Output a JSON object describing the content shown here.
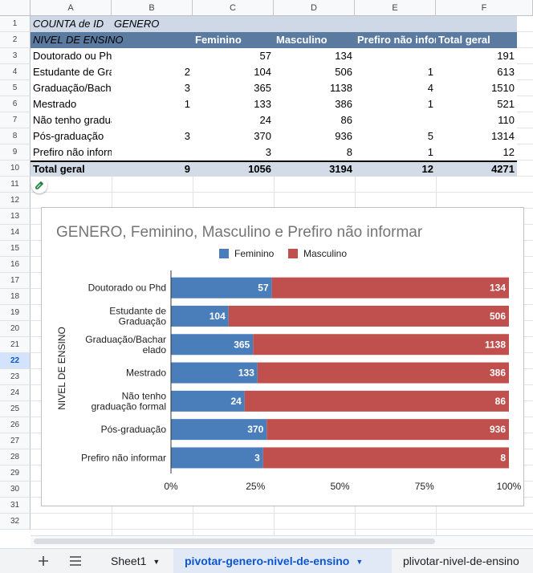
{
  "columns": [
    "A",
    "B",
    "C",
    "D",
    "E",
    "F"
  ],
  "rows": [
    "1",
    "2",
    "3",
    "4",
    "5",
    "6",
    "7",
    "8",
    "9",
    "10",
    "11",
    "12",
    "13",
    "14",
    "15",
    "16",
    "17",
    "18",
    "19",
    "20",
    "21",
    "22",
    "23",
    "24",
    "25",
    "26",
    "27",
    "28",
    "29",
    "30",
    "31",
    "32"
  ],
  "active_row": "22",
  "pivot": {
    "a1": "COUNTA de ID",
    "b1": "GENERO",
    "a2": "NIVEL DE ENSINO",
    "col_headers": [
      "Feminino",
      "Masculino",
      "Prefiro não informar",
      "Total geral"
    ],
    "body": [
      {
        "label": "Doutorado ou Phd",
        "b": "",
        "c": "57",
        "d": "134",
        "e": "",
        "f": "191"
      },
      {
        "label": "Estudante de Graduação",
        "b": "2",
        "c": "104",
        "d": "506",
        "e": "1",
        "f": "613"
      },
      {
        "label": "Graduação/Bacharelado",
        "b": "3",
        "c": "365",
        "d": "1138",
        "e": "4",
        "f": "1510"
      },
      {
        "label": "Mestrado",
        "b": "1",
        "c": "133",
        "d": "386",
        "e": "1",
        "f": "521"
      },
      {
        "label": "Não tenho graduação formal",
        "b": "",
        "c": "24",
        "d": "86",
        "e": "",
        "f": "110"
      },
      {
        "label": "Pós-graduação",
        "b": "3",
        "c": "370",
        "d": "936",
        "e": "5",
        "f": "1314"
      },
      {
        "label": "Prefiro não informar",
        "b": "",
        "c": "3",
        "d": "8",
        "e": "1",
        "f": "12"
      }
    ],
    "total": {
      "label": "Total geral",
      "b": "9",
      "c": "1056",
      "d": "3194",
      "e": "12",
      "f": "4271"
    }
  },
  "colors": {
    "header_band": "#cfd8e6",
    "col_header_band": "#5b7aa0",
    "total_band": "#d3dbe6",
    "feminino": "#4a7ebb",
    "masculino": "#c0504d",
    "active_tab": "#0b57d0"
  },
  "chart_data": {
    "type": "bar",
    "stacked": "percent",
    "orientation": "horizontal",
    "title": "GENERO, Feminino, Masculino e Prefiro não informar",
    "ylabel": "NIVEL DE ENSINO",
    "xlabel": "",
    "categories": [
      [
        "Doutorado ou Phd"
      ],
      [
        "Estudante de",
        "Graduação"
      ],
      [
        "Graduação/Bachar",
        "elado"
      ],
      [
        "Mestrado"
      ],
      [
        "Não tenho",
        "graduação formal"
      ],
      [
        "Pós-graduação"
      ],
      [
        "Prefiro não informar"
      ]
    ],
    "series": [
      {
        "name": "Feminino",
        "values": [
          57,
          104,
          365,
          133,
          24,
          370,
          3
        ]
      },
      {
        "name": "Masculino",
        "values": [
          134,
          506,
          1138,
          386,
          86,
          936,
          8
        ]
      }
    ],
    "x_ticks": [
      "0%",
      "25%",
      "50%",
      "75%",
      "100%"
    ],
    "xlim": [
      0,
      100
    ],
    "legend": "top"
  },
  "toolbar": {
    "add_icon": "plus-icon",
    "menu_icon": "sheet-list-icon"
  },
  "tabs": [
    {
      "label": "Sheet1",
      "active": false
    },
    {
      "label": "pivotar-genero-nivel-de-ensino",
      "active": true
    },
    {
      "label": "plivotar-nivel-de-ensino",
      "active": false
    }
  ]
}
